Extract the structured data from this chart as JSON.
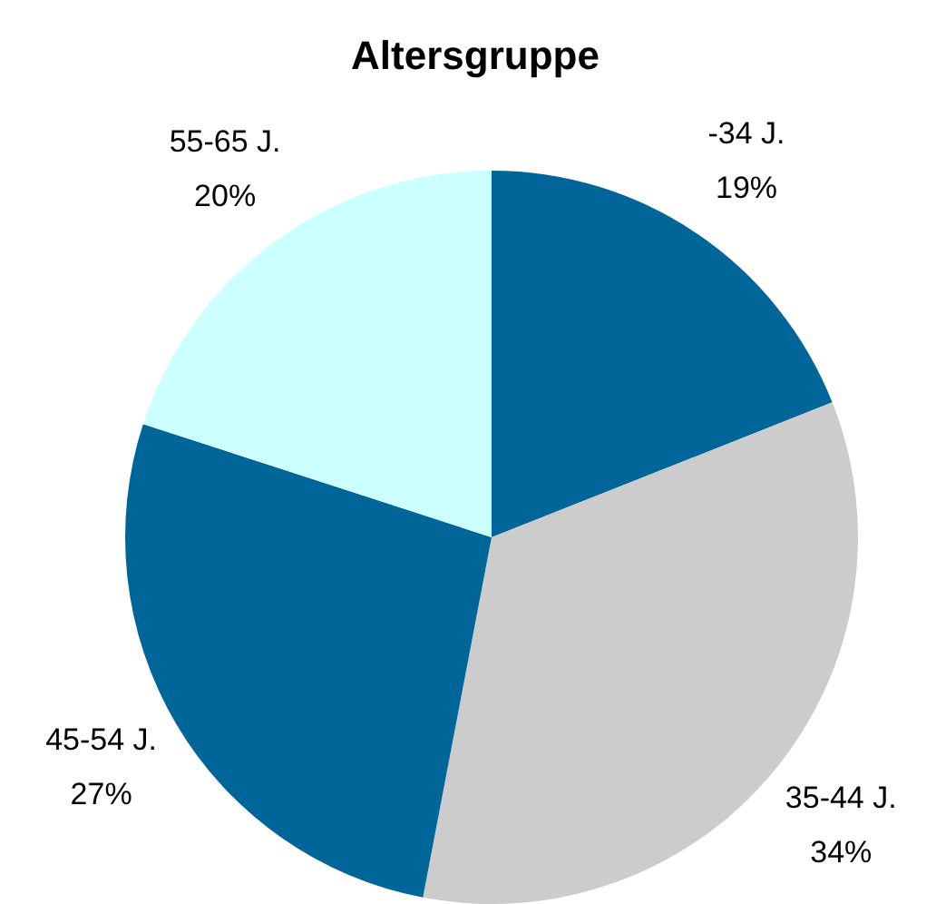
{
  "chart_data": {
    "type": "pie",
    "title": "Altersgruppe",
    "categories": [
      "-34 J.",
      "35-44 J.",
      "45-54 J.",
      "55-65 J."
    ],
    "values": [
      19,
      34,
      27,
      20
    ],
    "value_labels": [
      "19%",
      "34%",
      "27%",
      "20%"
    ],
    "colors": [
      "#006699",
      "#cccccc",
      "#006699",
      "#ccffff"
    ],
    "legend": false
  }
}
